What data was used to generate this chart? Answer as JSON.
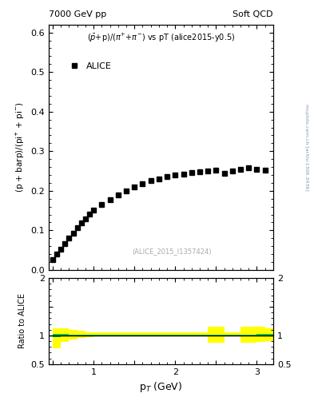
{
  "title_left": "7000 GeV pp",
  "title_right": "Soft QCD",
  "xlabel": "p$_{T}$ (GeV)",
  "ylabel_main": "(p + barp)/(pi$^{+}$ + pi$^{-}$)",
  "ylabel_ratio": "Ratio to ALICE",
  "plot_title": "($\\bar{p}$+p)/($\\pi^{+}$+$\\pi^{-}$) vs pT (alice2015-y0.5)",
  "watermark": "(ALICE_2015_I1357424)",
  "side_text": "mcplots.cern.ch [arXiv:1306.3436]",
  "legend_label": "ALICE",
  "xlim": [
    0.45,
    3.2
  ],
  "ylim_main": [
    0.0,
    0.62
  ],
  "ylim_ratio": [
    0.5,
    2.0
  ],
  "data_x": [
    0.5,
    0.55,
    0.6,
    0.65,
    0.7,
    0.75,
    0.8,
    0.85,
    0.9,
    0.95,
    1.0,
    1.1,
    1.2,
    1.3,
    1.4,
    1.5,
    1.6,
    1.7,
    1.8,
    1.9,
    2.0,
    2.1,
    2.2,
    2.3,
    2.4,
    2.5,
    2.6,
    2.7,
    2.8,
    2.9,
    3.0,
    3.1
  ],
  "data_y": [
    0.027,
    0.04,
    0.053,
    0.067,
    0.08,
    0.093,
    0.106,
    0.118,
    0.13,
    0.142,
    0.152,
    0.165,
    0.177,
    0.19,
    0.2,
    0.21,
    0.218,
    0.225,
    0.23,
    0.235,
    0.24,
    0.243,
    0.246,
    0.248,
    0.25,
    0.252,
    0.245,
    0.25,
    0.255,
    0.258,
    0.255,
    0.252
  ],
  "ratio_x": [
    0.5,
    0.6,
    0.7,
    0.8,
    0.9,
    1.0,
    1.1,
    1.2,
    1.4,
    1.6,
    1.8,
    2.0,
    2.2,
    2.4,
    2.6,
    2.8,
    3.0,
    3.1
  ],
  "ratio_x2": [
    0.6,
    0.7,
    0.8,
    0.9,
    1.0,
    1.1,
    1.2,
    1.4,
    1.6,
    1.8,
    2.0,
    2.2,
    2.4,
    2.6,
    2.8,
    3.0,
    3.1,
    3.2
  ],
  "ratio_green_lo": [
    0.97,
    0.99,
    1.0,
    1.0,
    1.0,
    1.0,
    1.0,
    1.0,
    1.0,
    1.0,
    1.0,
    1.0,
    1.0,
    1.0,
    1.0,
    1.0,
    1.0,
    1.0
  ],
  "ratio_green_hi": [
    1.03,
    1.02,
    1.01,
    1.01,
    1.01,
    1.01,
    1.01,
    1.01,
    1.01,
    1.01,
    1.01,
    1.01,
    1.01,
    1.01,
    1.01,
    1.01,
    1.02,
    1.02
  ],
  "ratio_yellow_lo": [
    0.78,
    0.88,
    0.93,
    0.96,
    0.97,
    0.98,
    0.98,
    0.98,
    0.98,
    0.98,
    0.98,
    0.98,
    0.98,
    0.87,
    0.98,
    0.87,
    0.88,
    0.9
  ],
  "ratio_yellow_hi": [
    1.12,
    1.12,
    1.1,
    1.08,
    1.06,
    1.05,
    1.05,
    1.05,
    1.05,
    1.05,
    1.05,
    1.05,
    1.05,
    1.15,
    1.05,
    1.15,
    1.15,
    1.12
  ],
  "ratio_line": 1.0,
  "marker_color": "#000000",
  "marker_style": "s",
  "marker_size": 4,
  "band_green_color": "#00cc44",
  "band_yellow_color": "#ffff00",
  "ratio_line_color": "#000000",
  "background_color": "#ffffff"
}
